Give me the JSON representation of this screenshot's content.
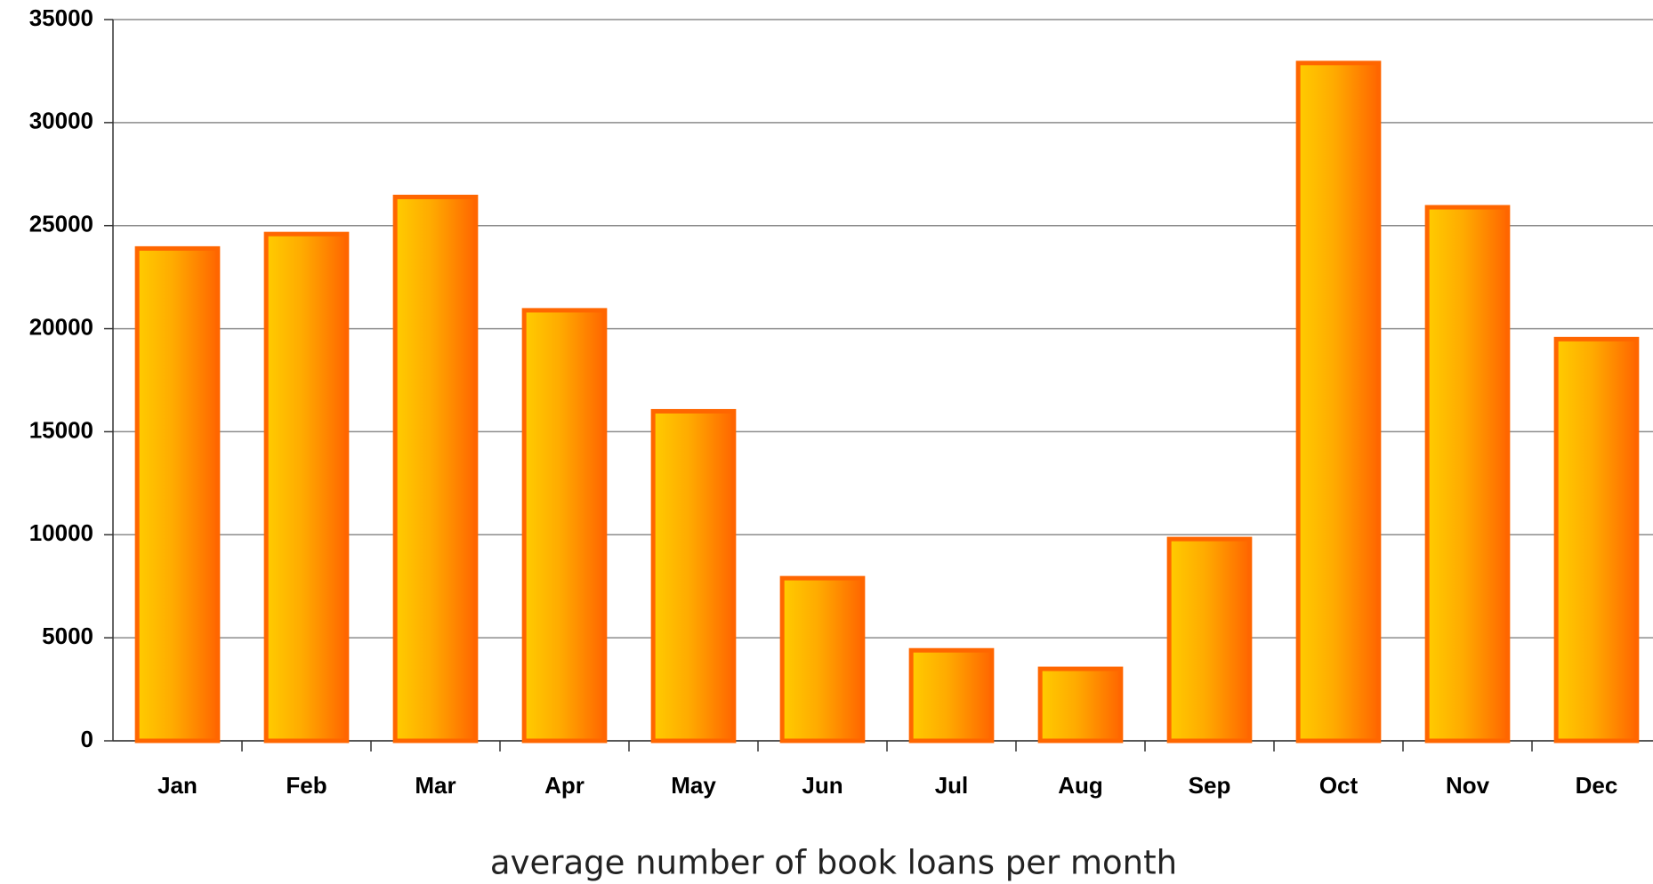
{
  "chart_data": {
    "type": "bar",
    "x_label": "average number of book loans per month",
    "categories": [
      "Jan",
      "Feb",
      "Mar",
      "Apr",
      "May",
      "Jun",
      "Jul",
      "Aug",
      "Sep",
      "Oct",
      "Nov",
      "Dec"
    ],
    "values": [
      24000,
      24700,
      26500,
      21000,
      16100,
      8000,
      4500,
      3600,
      9900,
      33000,
      26000,
      19600
    ],
    "color": "#ff6600",
    "ylim": [
      0,
      35000
    ],
    "yticks": [
      0,
      5000,
      10000,
      15000,
      20000,
      25000,
      30000,
      35000
    ],
    "grid": true
  }
}
